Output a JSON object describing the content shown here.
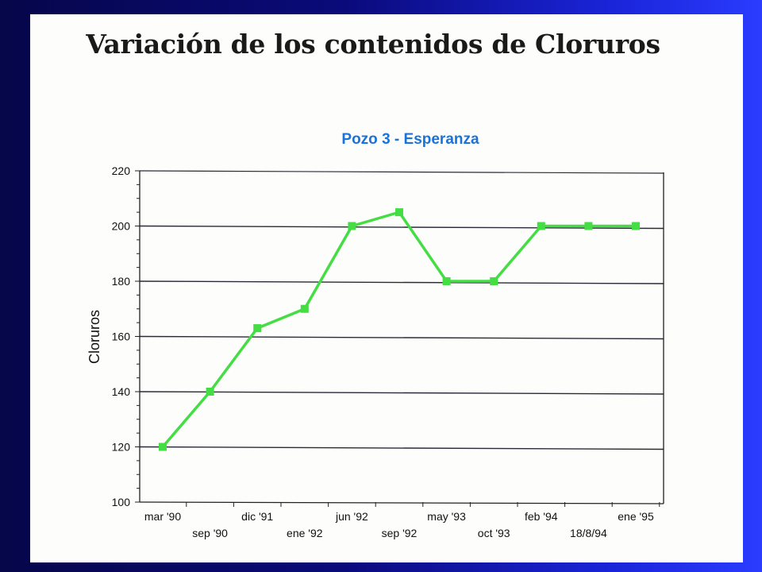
{
  "slide": {
    "title": "Variación de los contenidos de Cloruros"
  },
  "chart_data": {
    "type": "line",
    "title": "Pozo 3 - Esperanza",
    "xlabel": "",
    "ylabel": "Cloruros",
    "ylim": [
      100,
      220
    ],
    "yticks": [
      100,
      120,
      140,
      160,
      180,
      200,
      220
    ],
    "grid": "horizontal at 120-200",
    "categories": [
      "mar '90",
      "sep '90",
      "dic '91",
      "ene '92",
      "jun '92",
      "sep '92",
      "may '93",
      "oct '93",
      "feb '94",
      "18/8/94",
      "ene '95"
    ],
    "series": [
      {
        "values": [
          120,
          140,
          163,
          170,
          200,
          205,
          180,
          180,
          200,
          200,
          200
        ],
        "color": "#44dd44"
      }
    ],
    "title_color": "#1a73d9"
  }
}
